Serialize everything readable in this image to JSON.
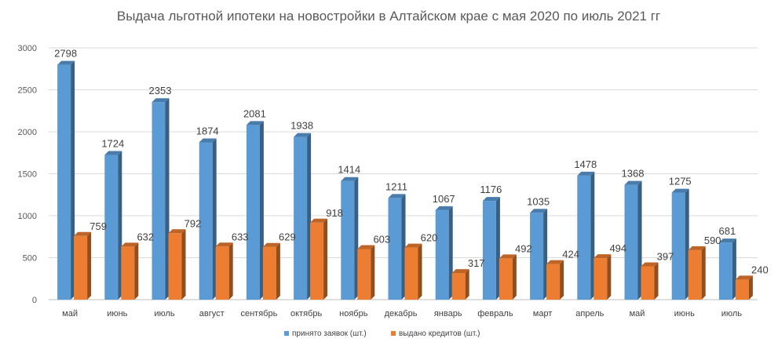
{
  "chart_data": {
    "type": "bar",
    "title": "Выдача льготной ипотеки на новостройки в Алтайском крае с мая 2020 по июль 2021 гг",
    "categories": [
      "май",
      "июнь",
      "июль",
      "август",
      "сентябрь",
      "октябрь",
      "ноябрь",
      "декабрь",
      "январь",
      "февраль",
      "март",
      "апрель",
      "май",
      "июнь",
      "июль"
    ],
    "series": [
      {
        "name": "принято заявок (шт.)",
        "color": "#5b9bd5",
        "values": [
          2798,
          1724,
          2353,
          1874,
          2081,
          1938,
          1414,
          1211,
          1067,
          1176,
          1035,
          1478,
          1368,
          1275,
          681
        ]
      },
      {
        "name": "выдано кредитов (шт.)",
        "color": "#ed7d31",
        "values": [
          759,
          632,
          792,
          633,
          629,
          918,
          603,
          620,
          317,
          492,
          424,
          494,
          397,
          590,
          240
        ]
      }
    ],
    "ylim": [
      0,
      3000
    ],
    "yticks": [
      0,
      500,
      1000,
      1500,
      2000,
      2500,
      3000
    ],
    "grid": true,
    "bar_style": "3d",
    "legend": "bottom"
  }
}
